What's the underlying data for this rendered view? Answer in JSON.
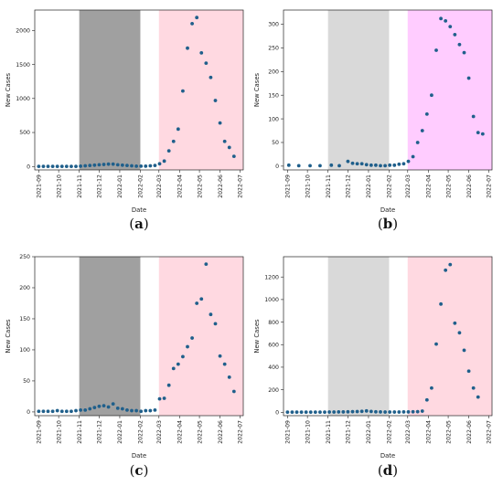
{
  "chart_data": [
    {
      "caption": "(a)",
      "type": "scatter",
      "xlabel": "Date",
      "ylabel": "New Cases",
      "ylim": [
        -50,
        2300
      ],
      "xlim": [
        "2021-08-26",
        "2022-07-06"
      ],
      "x_ticks": [
        "2021-09",
        "2021-10",
        "2021-11",
        "2021-12",
        "2022-01",
        "2022-02",
        "2022-03",
        "2022-04",
        "2022-05",
        "2022-06",
        "2022-07"
      ],
      "y_ticks": [
        0,
        500,
        1000,
        1500,
        2000
      ],
      "shaded_regions": [
        {
          "start": "2021-11-01",
          "end": "2022-02-01",
          "color": "#a0a0a0"
        },
        {
          "start": "2022-03-01",
          "end": "2022-07-06",
          "color": "#ffd9e1"
        }
      ],
      "marker_color": "#1f5f8b",
      "points": [
        [
          "2021-09-01",
          2
        ],
        [
          "2021-09-08",
          2
        ],
        [
          "2021-09-15",
          2
        ],
        [
          "2021-09-22",
          2
        ],
        [
          "2021-09-29",
          2
        ],
        [
          "2021-10-06",
          2
        ],
        [
          "2021-10-13",
          2
        ],
        [
          "2021-10-20",
          2
        ],
        [
          "2021-10-27",
          2
        ],
        [
          "2021-11-03",
          5
        ],
        [
          "2021-11-10",
          10
        ],
        [
          "2021-11-17",
          15
        ],
        [
          "2021-11-24",
          20
        ],
        [
          "2021-12-01",
          25
        ],
        [
          "2021-12-08",
          30
        ],
        [
          "2021-12-15",
          35
        ],
        [
          "2021-12-22",
          35
        ],
        [
          "2021-12-29",
          25
        ],
        [
          "2022-01-05",
          20
        ],
        [
          "2022-01-12",
          15
        ],
        [
          "2022-01-19",
          10
        ],
        [
          "2022-01-26",
          5
        ],
        [
          "2022-02-02",
          5
        ],
        [
          "2022-02-09",
          5
        ],
        [
          "2022-02-16",
          10
        ],
        [
          "2022-02-23",
          15
        ],
        [
          "2022-03-02",
          40
        ],
        [
          "2022-03-09",
          80
        ],
        [
          "2022-03-16",
          230
        ],
        [
          "2022-03-23",
          370
        ],
        [
          "2022-03-30",
          550
        ],
        [
          "2022-04-06",
          1110
        ],
        [
          "2022-04-13",
          1740
        ],
        [
          "2022-04-20",
          2100
        ],
        [
          "2022-04-27",
          2190
        ],
        [
          "2022-05-04",
          1670
        ],
        [
          "2022-05-11",
          1520
        ],
        [
          "2022-05-18",
          1310
        ],
        [
          "2022-05-25",
          970
        ],
        [
          "2022-06-01",
          640
        ],
        [
          "2022-06-08",
          370
        ],
        [
          "2022-06-15",
          280
        ],
        [
          "2022-06-22",
          150
        ]
      ]
    },
    {
      "caption": "(b)",
      "type": "scatter",
      "xlabel": "Date",
      "ylabel": "New Cases",
      "ylim": [
        -8,
        330
      ],
      "xlim": [
        "2021-08-26",
        "2022-07-06"
      ],
      "x_ticks": [
        "2021-09",
        "2021-10",
        "2021-11",
        "2021-12",
        "2022-01",
        "2022-02",
        "2022-03",
        "2022-04",
        "2022-05",
        "2022-06",
        "2022-07"
      ],
      "y_ticks": [
        0,
        50,
        100,
        150,
        200,
        250,
        300
      ],
      "shaded_regions": [
        {
          "start": "2021-11-01",
          "end": "2022-02-01",
          "color": "#d9d9d9"
        },
        {
          "start": "2022-03-01",
          "end": "2022-07-06",
          "color": "#ffccff"
        }
      ],
      "marker_color": "#1f5f8b",
      "points": [
        [
          "2021-09-03",
          2
        ],
        [
          "2021-09-18",
          1
        ],
        [
          "2021-10-05",
          1
        ],
        [
          "2021-10-20",
          1
        ],
        [
          "2021-11-06",
          2
        ],
        [
          "2021-11-18",
          1
        ],
        [
          "2021-12-01",
          10
        ],
        [
          "2021-12-08",
          6
        ],
        [
          "2021-12-15",
          5
        ],
        [
          "2021-12-22",
          5
        ],
        [
          "2021-12-29",
          3
        ],
        [
          "2022-01-05",
          2
        ],
        [
          "2022-01-12",
          2
        ],
        [
          "2022-01-19",
          1
        ],
        [
          "2022-01-26",
          1
        ],
        [
          "2022-02-02",
          2
        ],
        [
          "2022-02-09",
          2
        ],
        [
          "2022-02-16",
          4
        ],
        [
          "2022-02-23",
          5
        ],
        [
          "2022-03-02",
          10
        ],
        [
          "2022-03-09",
          20
        ],
        [
          "2022-03-16",
          50
        ],
        [
          "2022-03-23",
          75
        ],
        [
          "2022-03-30",
          110
        ],
        [
          "2022-04-06",
          150
        ],
        [
          "2022-04-13",
          245
        ],
        [
          "2022-04-20",
          312
        ],
        [
          "2022-04-27",
          307
        ],
        [
          "2022-05-04",
          295
        ],
        [
          "2022-05-11",
          278
        ],
        [
          "2022-05-18",
          257
        ],
        [
          "2022-05-25",
          240
        ],
        [
          "2022-06-01",
          186
        ],
        [
          "2022-06-08",
          105
        ],
        [
          "2022-06-15",
          71
        ],
        [
          "2022-06-22",
          68
        ]
      ]
    },
    {
      "caption": "(c)",
      "type": "scatter",
      "xlabel": "Date",
      "ylabel": "New Cases",
      "ylim": [
        -6,
        250
      ],
      "xlim": [
        "2021-08-26",
        "2022-07-06"
      ],
      "x_ticks": [
        "2021-09",
        "2021-10",
        "2021-11",
        "2021-12",
        "2022-01",
        "2022-02",
        "2022-03",
        "2022-04",
        "2022-05",
        "2022-06",
        "2022-07"
      ],
      "y_ticks": [
        0,
        50,
        100,
        150,
        200,
        250
      ],
      "shaded_regions": [
        {
          "start": "2021-11-01",
          "end": "2022-02-01",
          "color": "#a0a0a0"
        },
        {
          "start": "2022-03-01",
          "end": "2022-07-06",
          "color": "#ffd9e1"
        }
      ],
      "marker_color": "#1f5f8b",
      "points": [
        [
          "2021-09-01",
          1
        ],
        [
          "2021-09-08",
          1
        ],
        [
          "2021-09-15",
          1
        ],
        [
          "2021-09-22",
          1
        ],
        [
          "2021-09-29",
          2
        ],
        [
          "2021-10-06",
          1
        ],
        [
          "2021-10-13",
          1
        ],
        [
          "2021-10-20",
          1
        ],
        [
          "2021-10-27",
          2
        ],
        [
          "2021-11-03",
          3
        ],
        [
          "2021-11-10",
          3
        ],
        [
          "2021-11-17",
          5
        ],
        [
          "2021-11-24",
          7
        ],
        [
          "2021-12-01",
          9
        ],
        [
          "2021-12-08",
          10
        ],
        [
          "2021-12-15",
          8
        ],
        [
          "2021-12-22",
          13
        ],
        [
          "2021-12-29",
          6
        ],
        [
          "2022-01-05",
          5
        ],
        [
          "2022-01-12",
          3
        ],
        [
          "2022-01-19",
          2
        ],
        [
          "2022-01-26",
          2
        ],
        [
          "2022-02-02",
          1
        ],
        [
          "2022-02-09",
          2
        ],
        [
          "2022-02-16",
          2
        ],
        [
          "2022-02-23",
          3
        ],
        [
          "2022-03-02",
          21
        ],
        [
          "2022-03-09",
          22
        ],
        [
          "2022-03-16",
          43
        ],
        [
          "2022-03-23",
          70
        ],
        [
          "2022-03-30",
          77
        ],
        [
          "2022-04-06",
          89
        ],
        [
          "2022-04-13",
          105
        ],
        [
          "2022-04-20",
          119
        ],
        [
          "2022-04-27",
          175
        ],
        [
          "2022-05-04",
          182
        ],
        [
          "2022-05-11",
          238
        ],
        [
          "2022-05-18",
          157
        ],
        [
          "2022-05-25",
          142
        ],
        [
          "2022-06-01",
          90
        ],
        [
          "2022-06-08",
          77
        ],
        [
          "2022-06-15",
          56
        ],
        [
          "2022-06-22",
          33
        ]
      ]
    },
    {
      "caption": "(d)",
      "type": "scatter",
      "xlabel": "Date",
      "ylabel": "New Cases",
      "ylim": [
        -30,
        1380
      ],
      "xlim": [
        "2021-08-26",
        "2022-07-06"
      ],
      "x_ticks": [
        "2021-09",
        "2021-10",
        "2021-11",
        "2021-12",
        "2022-01",
        "2022-02",
        "2022-03",
        "2022-04",
        "2022-05",
        "2022-06",
        "2022-07"
      ],
      "y_ticks": [
        0,
        200,
        400,
        600,
        800,
        1000,
        1200
      ],
      "shaded_regions": [
        {
          "start": "2021-11-01",
          "end": "2022-02-01",
          "color": "#d9d9d9"
        },
        {
          "start": "2022-03-01",
          "end": "2022-07-06",
          "color": "#ffd9e1"
        }
      ],
      "marker_color": "#1f5f8b",
      "points": [
        [
          "2021-09-01",
          1
        ],
        [
          "2021-09-08",
          1
        ],
        [
          "2021-09-15",
          1
        ],
        [
          "2021-09-22",
          1
        ],
        [
          "2021-09-29",
          1
        ],
        [
          "2021-10-06",
          1
        ],
        [
          "2021-10-13",
          1
        ],
        [
          "2021-10-20",
          1
        ],
        [
          "2021-10-27",
          1
        ],
        [
          "2021-11-03",
          2
        ],
        [
          "2021-11-10",
          2
        ],
        [
          "2021-11-17",
          3
        ],
        [
          "2021-11-24",
          3
        ],
        [
          "2021-12-01",
          4
        ],
        [
          "2021-12-08",
          5
        ],
        [
          "2021-12-15",
          6
        ],
        [
          "2021-12-22",
          8
        ],
        [
          "2021-12-29",
          12
        ],
        [
          "2022-01-05",
          7
        ],
        [
          "2022-01-12",
          4
        ],
        [
          "2022-01-19",
          3
        ],
        [
          "2022-01-26",
          2
        ],
        [
          "2022-02-02",
          2
        ],
        [
          "2022-02-09",
          2
        ],
        [
          "2022-02-16",
          2
        ],
        [
          "2022-02-23",
          3
        ],
        [
          "2022-03-02",
          3
        ],
        [
          "2022-03-09",
          4
        ],
        [
          "2022-03-16",
          5
        ],
        [
          "2022-03-23",
          10
        ],
        [
          "2022-03-30",
          110
        ],
        [
          "2022-04-06",
          215
        ],
        [
          "2022-04-13",
          605
        ],
        [
          "2022-04-20",
          960
        ],
        [
          "2022-04-27",
          1260
        ],
        [
          "2022-05-04",
          1310
        ],
        [
          "2022-05-11",
          790
        ],
        [
          "2022-05-18",
          705
        ],
        [
          "2022-05-25",
          550
        ],
        [
          "2022-06-01",
          365
        ],
        [
          "2022-06-08",
          215
        ],
        [
          "2022-06-15",
          135
        ]
      ]
    }
  ]
}
